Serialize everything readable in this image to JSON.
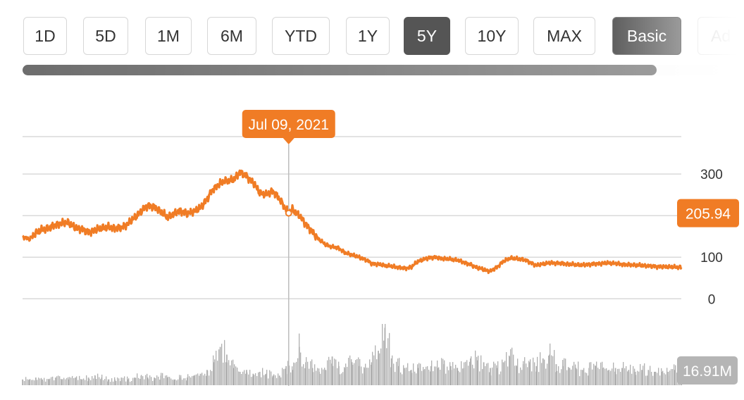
{
  "range_buttons": [
    {
      "label": "1D"
    },
    {
      "label": "5D"
    },
    {
      "label": "1M"
    },
    {
      "label": "6M"
    },
    {
      "label": "YTD"
    },
    {
      "label": "1Y"
    },
    {
      "label": "5Y"
    },
    {
      "label": "10Y"
    },
    {
      "label": "MAX"
    }
  ],
  "active_range": "5Y",
  "mode_buttons": [
    {
      "label": "Basic"
    },
    {
      "label": "Ad"
    }
  ],
  "active_mode": "Basic",
  "colors": {
    "price_line": "#f07c25",
    "volume_bars": "#b0b0b0",
    "active_button": "#555555",
    "grid": "#d9d9d9"
  },
  "tooltip": {
    "date": "Jul 09, 2021"
  },
  "current_price_badge": "205.94",
  "volume_badge": "16.91M",
  "chart_data": [
    {
      "type": "line",
      "series": [
        {
          "x": [
            2019.5,
            2019.55,
            2019.6,
            2019.65,
            2019.7,
            2019.75,
            2019.8,
            2019.85,
            2019.9,
            2019.95,
            2020.0,
            2020.05,
            2020.1,
            2020.15,
            2020.2,
            2020.25,
            2020.3,
            2020.35,
            2020.4,
            2020.45,
            2020.5,
            2020.55,
            2020.6,
            2020.65,
            2020.7,
            2020.75,
            2020.8,
            2020.85,
            2020.9,
            2020.95,
            2021.0,
            2021.05,
            2021.1,
            2021.15,
            2021.2,
            2021.25,
            2021.3,
            2021.35,
            2021.4,
            2021.45,
            2021.52,
            2021.55,
            2021.6,
            2021.65,
            2021.7,
            2021.75,
            2021.8,
            2021.85,
            2021.9,
            2021.95,
            2022.0,
            2022.05,
            2022.1,
            2022.15,
            2022.2,
            2022.25,
            2022.3,
            2022.35,
            2022.4,
            2022.45,
            2022.5,
            2022.55,
            2022.6,
            2022.65,
            2022.7,
            2022.75,
            2022.8,
            2022.85,
            2022.9,
            2022.95,
            2023.0,
            2023.05,
            2023.1,
            2023.15,
            2023.2,
            2023.25,
            2023.3,
            2023.35,
            2023.4,
            2023.45,
            2023.5,
            2023.55,
            2023.6,
            2023.65,
            2023.7,
            2023.75,
            2023.8,
            2023.85,
            2023.9,
            2023.95,
            2024.0,
            2024.05,
            2024.1,
            2024.15,
            2024.2,
            2024.25,
            2024.3,
            2024.35,
            2024.4,
            2024.45,
            2024.5
          ],
          "values": [
            150,
            143,
            158,
            166,
            170,
            178,
            182,
            183,
            170,
            168,
            160,
            165,
            170,
            172,
            170,
            171,
            180,
            195,
            210,
            225,
            220,
            210,
            195,
            205,
            212,
            205,
            210,
            218,
            240,
            265,
            278,
            284,
            285,
            305,
            295,
            280,
            255,
            250,
            260,
            240,
            206,
            215,
            200,
            180,
            160,
            143,
            130,
            125,
            122,
            110,
            106,
            100,
            95,
            85,
            83,
            80,
            78,
            76,
            73,
            76,
            90,
            95,
            100,
            99,
            96,
            95,
            93,
            88,
            82,
            75,
            70,
            66,
            76,
            90,
            98,
            96,
            95,
            88,
            80,
            84,
            86,
            86,
            85,
            83,
            82,
            81,
            83,
            84,
            85,
            86,
            85,
            83,
            82,
            81,
            80,
            79,
            78,
            77,
            77,
            76,
            76
          ]
        }
      ],
      "xlim": [
        2019.5,
        2024.5
      ],
      "ylim": [
        -30,
        390
      ],
      "y_ticks": [
        0,
        100,
        300
      ],
      "y_tick_labels": [
        "0",
        "100",
        "300"
      ],
      "grid": true,
      "annotations": [
        {
          "text": "Jul 09, 2021",
          "x": 2021.52,
          "y": 206
        },
        {
          "text": "205.94",
          "x": 2024.5,
          "y": 205.94
        }
      ]
    },
    {
      "type": "bar",
      "x": [
        2019.5,
        2019.55,
        2019.6,
        2019.65,
        2019.7,
        2019.75,
        2019.8,
        2019.85,
        2019.9,
        2019.95,
        2020.0,
        2020.05,
        2020.1,
        2020.15,
        2020.2,
        2020.25,
        2020.3,
        2020.35,
        2020.4,
        2020.45,
        2020.5,
        2020.55,
        2020.6,
        2020.65,
        2020.7,
        2020.75,
        2020.8,
        2020.85,
        2020.9,
        2020.95,
        2021.0,
        2021.05,
        2021.1,
        2021.15,
        2021.2,
        2021.25,
        2021.3,
        2021.35,
        2021.4,
        2021.45,
        2021.5,
        2021.55,
        2021.6,
        2021.65,
        2021.7,
        2021.75,
        2021.8,
        2021.85,
        2021.9,
        2021.95,
        2022.0,
        2022.05,
        2022.1,
        2022.15,
        2022.2,
        2022.25,
        2022.3,
        2022.35,
        2022.4,
        2022.45,
        2022.5,
        2022.55,
        2022.6,
        2022.65,
        2022.7,
        2022.75,
        2022.8,
        2022.85,
        2022.9,
        2022.95,
        2023.0,
        2023.05,
        2023.1,
        2023.15,
        2023.2,
        2023.25,
        2023.3,
        2023.35,
        2023.4,
        2023.45,
        2023.5,
        2023.55,
        2023.6,
        2023.65,
        2023.7,
        2023.75,
        2023.8,
        2023.85,
        2023.9,
        2023.95,
        2024.0,
        2024.05,
        2024.1,
        2024.15,
        2024.2,
        2024.25,
        2024.3,
        2024.35,
        2024.4,
        2024.45,
        2024.5
      ],
      "values": [
        3,
        3,
        4,
        3,
        3,
        4,
        3,
        3,
        4,
        3,
        4,
        5,
        4,
        3,
        3,
        4,
        3,
        4,
        5,
        4,
        4,
        5,
        4,
        3,
        4,
        4,
        5,
        6,
        8,
        12,
        20,
        16,
        9,
        7,
        8,
        6,
        7,
        6,
        5,
        5,
        10,
        8,
        20,
        12,
        9,
        7,
        8,
        15,
        10,
        9,
        12,
        10,
        9,
        12,
        18,
        30,
        14,
        10,
        9,
        8,
        9,
        8,
        10,
        9,
        11,
        10,
        9,
        9,
        14,
        13,
        12,
        9,
        9,
        12,
        15,
        10,
        11,
        12,
        10,
        14,
        16,
        11,
        10,
        9,
        9,
        8,
        9,
        10,
        9,
        8,
        9,
        9,
        8,
        7,
        8,
        8,
        7,
        7,
        7,
        8,
        8
      ],
      "ylim": [
        0,
        32
      ],
      "annotations": [
        {
          "text": "16.91M"
        }
      ]
    }
  ]
}
